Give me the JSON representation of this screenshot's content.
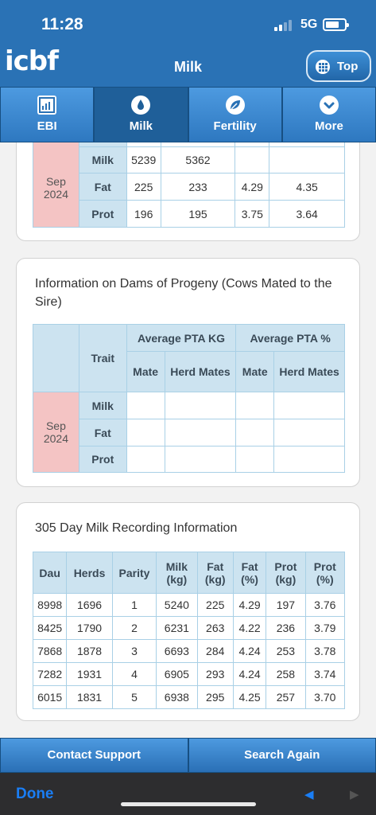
{
  "status": {
    "time": "11:28",
    "network": "5G"
  },
  "header": {
    "logo": "icbf",
    "title": "Milk",
    "top_button": "Top"
  },
  "tabs": [
    {
      "label": "EBI",
      "icon": "bar-chart-icon",
      "active": false
    },
    {
      "label": "Milk",
      "icon": "milk-drop-icon",
      "active": true
    },
    {
      "label": "Fertility",
      "icon": "leaf-icon",
      "active": false
    },
    {
      "label": "More",
      "icon": "chevron-down-icon",
      "active": false
    }
  ],
  "card1": {
    "date": "Sep 2024",
    "rows": [
      {
        "trait": "Milk",
        "c1": "5239",
        "c2": "5362",
        "c3": "",
        "c4": ""
      },
      {
        "trait": "Fat",
        "c1": "225",
        "c2": "233",
        "c3": "4.29",
        "c4": "4.35"
      },
      {
        "trait": "Prot",
        "c1": "196",
        "c2": "195",
        "c3": "3.75",
        "c4": "3.64"
      }
    ]
  },
  "card2": {
    "title": "Information on Dams of Progeny (Cows Mated to the Sire)",
    "trait_header": "Trait",
    "avg_kg": "Average PTA KG",
    "avg_pct": "Average PTA %",
    "mate": "Mate",
    "herd_mates": "Herd Mates",
    "date": "Sep 2024",
    "traits": [
      "Milk",
      "Fat",
      "Prot"
    ]
  },
  "card3": {
    "title": "305 Day Milk Recording Information",
    "headers": [
      "Dau",
      "Herds",
      "Parity",
      "Milk (kg)",
      "Fat (kg)",
      "Fat (%)",
      "Prot (kg)",
      "Prot (%)"
    ],
    "rows": [
      [
        "8998",
        "1696",
        "1",
        "5240",
        "225",
        "4.29",
        "197",
        "3.76"
      ],
      [
        "8425",
        "1790",
        "2",
        "6231",
        "263",
        "4.22",
        "236",
        "3.79"
      ],
      [
        "7868",
        "1878",
        "3",
        "6693",
        "284",
        "4.24",
        "253",
        "3.78"
      ],
      [
        "7282",
        "1931",
        "4",
        "6905",
        "293",
        "4.24",
        "258",
        "3.74"
      ],
      [
        "6015",
        "1831",
        "5",
        "6938",
        "295",
        "4.25",
        "257",
        "3.70"
      ]
    ]
  },
  "bottom": {
    "contact": "Contact Support",
    "search": "Search Again"
  },
  "browser": {
    "done": "Done"
  }
}
